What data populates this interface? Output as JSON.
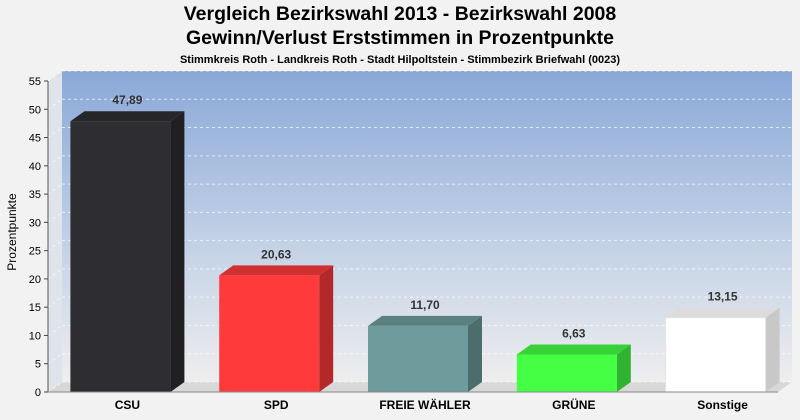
{
  "chart_data": {
    "type": "bar",
    "title": "Vergleich Bezirkswahl 2013 - Bezirkswahl 2008",
    "subtitle_line": "Gewinn/Verlust Erststimmen in Prozentpunkte",
    "subtitle": "Stimmkreis Roth - Landkreis Roth - Stadt Hilpoltstein - Stimmbezirk Briefwahl (0023)",
    "ylabel": "Prozentpunkte",
    "xlabel": "",
    "ylim": [
      0,
      55
    ],
    "yticks": [
      "0",
      "5",
      "10",
      "15",
      "20",
      "25",
      "30",
      "35",
      "40",
      "45",
      "50",
      "55"
    ],
    "grid": true,
    "categories": [
      "CSU",
      "SPD",
      "FREIE WÄHLER",
      "GRÜNE",
      "Sonstige"
    ],
    "values": [
      47.89,
      20.63,
      11.7,
      6.63,
      13.15
    ],
    "value_labels": [
      "47,89",
      "20,63",
      "11,70",
      "6,63",
      "13,15"
    ],
    "colors": [
      "#2e2e32",
      "#ff3a3a",
      "#6e9c9c",
      "#44ff44",
      "#ffffff"
    ]
  }
}
